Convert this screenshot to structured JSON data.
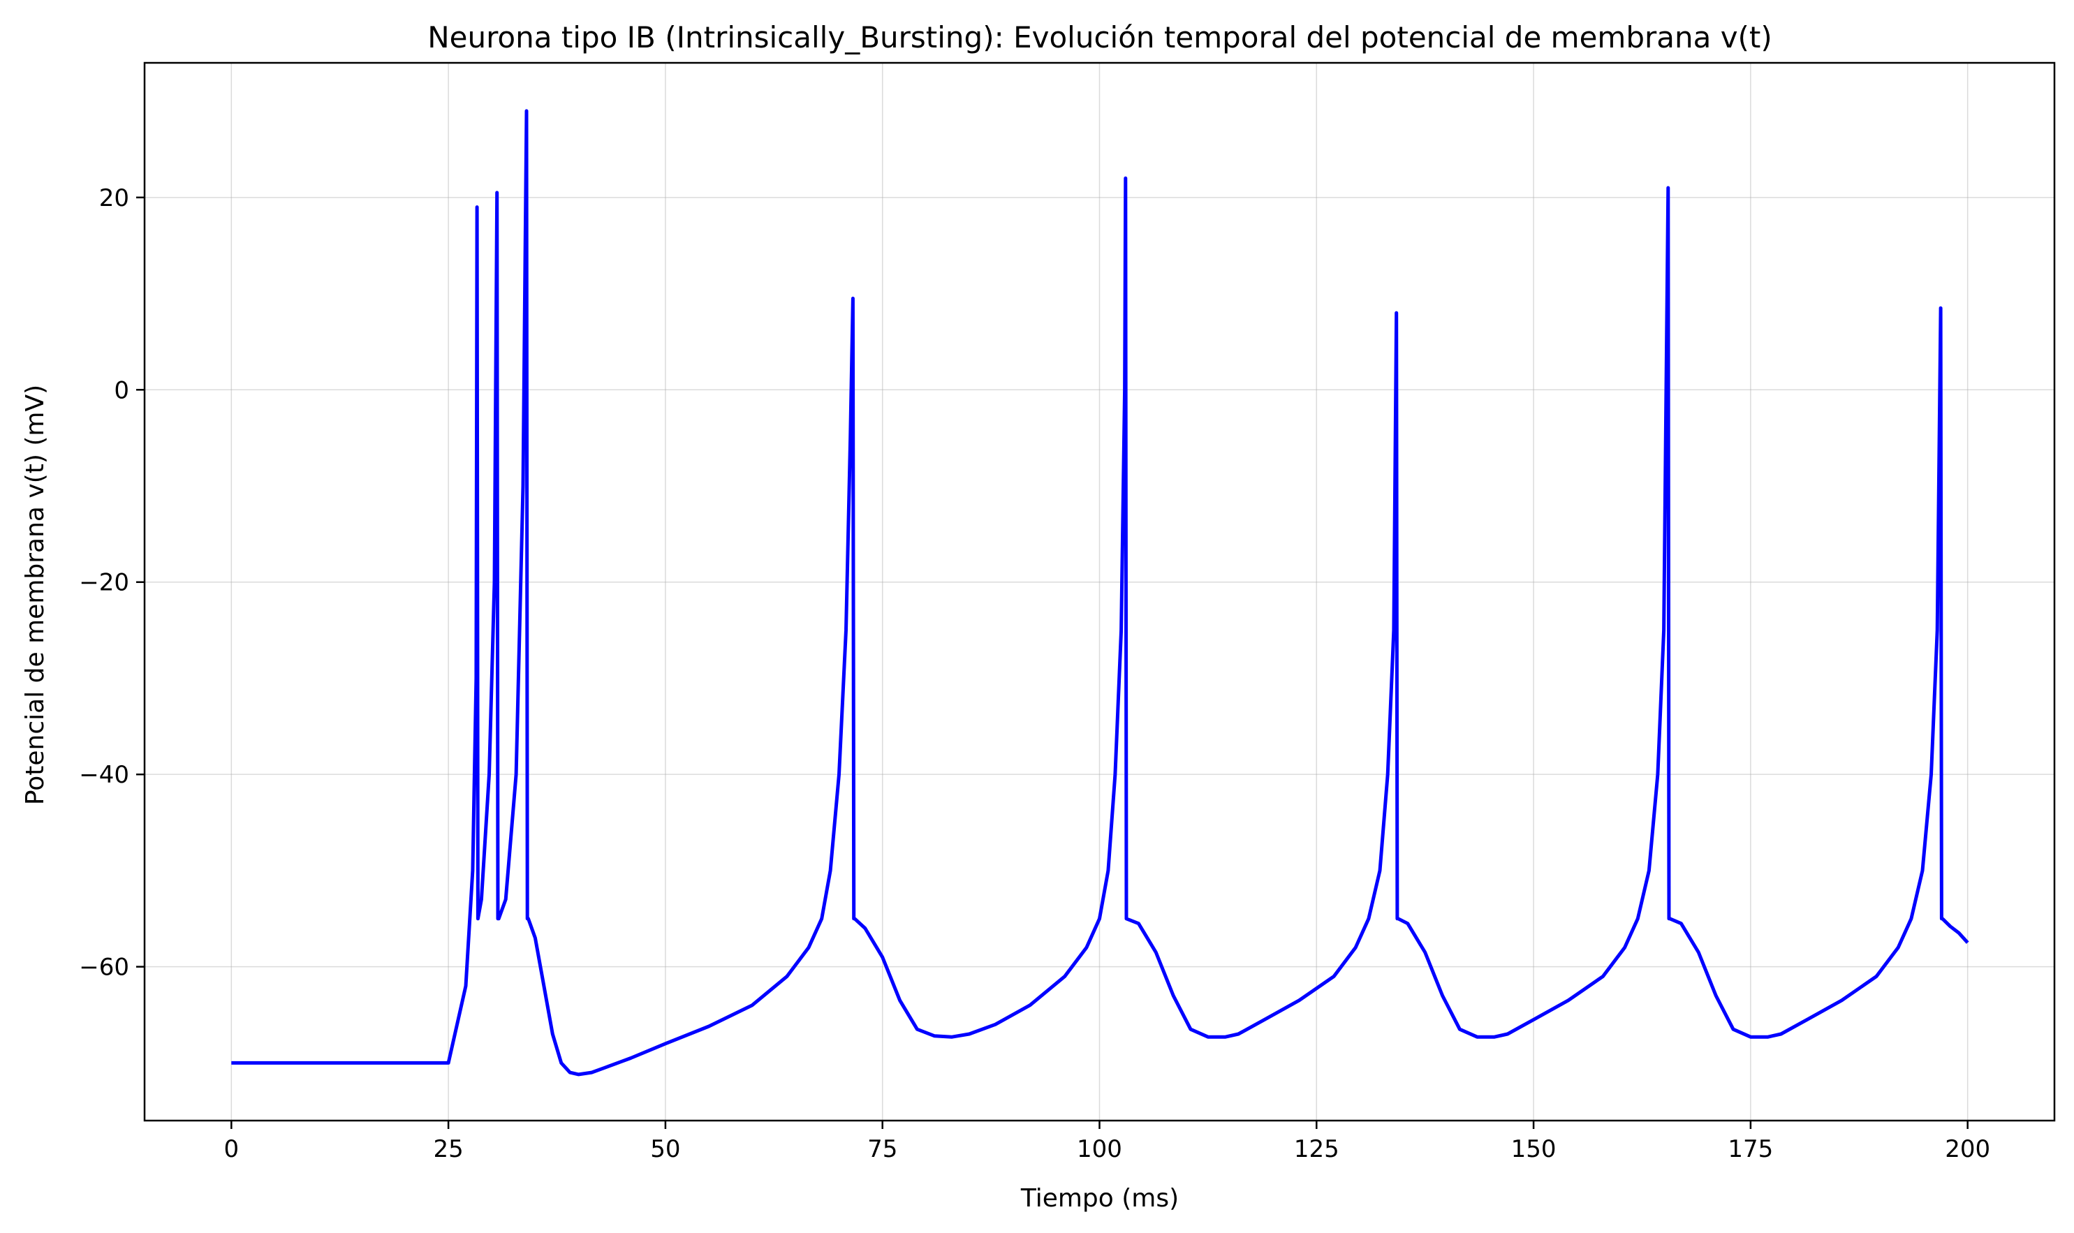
{
  "chart_data": {
    "type": "line",
    "title": "Neurona tipo IB (Intrinsically_Bursting): Evolución temporal del potencial de membrana v(t)",
    "xlabel": "Tiempo (ms)",
    "ylabel": "Potencial de membrana v(t) (mV)",
    "xlim": [
      -10,
      210
    ],
    "ylim": [
      -76,
      34
    ],
    "xticks": [
      0,
      25,
      50,
      75,
      100,
      125,
      150,
      175,
      200
    ],
    "yticks": [
      -60,
      -40,
      -20,
      0,
      20
    ],
    "xtick_labels": [
      "0",
      "25",
      "50",
      "75",
      "100",
      "125",
      "150",
      "175",
      "200"
    ],
    "ytick_labels": [
      "−60",
      "−40",
      "−20",
      "0",
      "20"
    ],
    "grid": true,
    "color": "#0000ff",
    "series": [
      {
        "x": [
          0,
          25,
          27,
          27.8,
          28.2,
          28.3,
          28.4,
          28.8,
          29.7,
          30.3,
          30.6,
          30.7,
          30.8,
          31.6,
          32.8,
          33.6,
          34.0,
          34.1,
          34.2,
          35.0,
          36.0,
          37.0,
          38.0,
          39.0,
          40.0,
          41.5,
          43.0,
          46.0,
          50.0,
          55.0,
          60.0,
          64.0,
          66.5,
          68.0,
          69.0,
          70.0,
          70.8,
          71.3,
          71.6,
          71.7,
          71.8,
          73.0,
          75.0,
          77.0,
          79.0,
          81.0,
          83.0,
          85.0,
          88.0,
          92.0,
          96.0,
          98.5,
          100.0,
          101.0,
          101.8,
          102.5,
          102.9,
          103.0,
          103.1,
          104.5,
          106.5,
          108.5,
          110.5,
          112.5,
          114.5,
          116.0,
          119.0,
          123.0,
          127.0,
          129.5,
          131.0,
          132.3,
          133.2,
          133.9,
          134.2,
          134.3,
          134.4,
          135.5,
          137.5,
          139.5,
          141.5,
          143.5,
          145.5,
          147.0,
          150.0,
          154.0,
          158.0,
          160.5,
          162.0,
          163.3,
          164.3,
          165.0,
          165.5,
          165.6,
          165.7,
          167.0,
          169.0,
          171.0,
          173.0,
          175.0,
          177.0,
          178.5,
          181.5,
          185.5,
          189.5,
          192.0,
          193.5,
          194.8,
          195.8,
          196.5,
          196.9,
          197.0,
          197.1,
          198.0,
          199.0,
          200.0
        ],
        "y": [
          -70,
          -70,
          -62,
          -50,
          -30,
          19,
          -55,
          -53,
          -40,
          -20,
          20.5,
          -55,
          -55,
          -53,
          -40,
          -10,
          29,
          -55,
          -55,
          -57,
          -62,
          -67,
          -70,
          -71,
          -71.2,
          -71,
          -70.5,
          -69.5,
          -68,
          -66.2,
          -64,
          -61,
          -58,
          -55,
          -50,
          -40,
          -25,
          -5,
          9.5,
          -55,
          -55,
          -56,
          -59,
          -63.5,
          -66.5,
          -67.2,
          -67.3,
          -67,
          -66,
          -64,
          -61,
          -58,
          -55,
          -50,
          -40,
          -25,
          0,
          22,
          -55,
          -55.5,
          -58.5,
          -63,
          -66.5,
          -67.3,
          -67.3,
          -67,
          -65.5,
          -63.5,
          -61,
          -58,
          -55,
          -50,
          -40,
          -25,
          8,
          -55,
          -55,
          -55.5,
          -58.5,
          -63,
          -66.5,
          -67.3,
          -67.3,
          -67,
          -65.5,
          -63.5,
          -61,
          -58,
          -55,
          -50,
          -40,
          -25,
          21,
          -55,
          -55,
          -55.5,
          -58.5,
          -63,
          -66.5,
          -67.3,
          -67.3,
          -67,
          -65.5,
          -63.5,
          -61,
          -58,
          -55,
          -50,
          -40,
          -25,
          8.5,
          -55,
          -55,
          -55.8,
          -56.5,
          -57.5
        ]
      }
    ]
  }
}
